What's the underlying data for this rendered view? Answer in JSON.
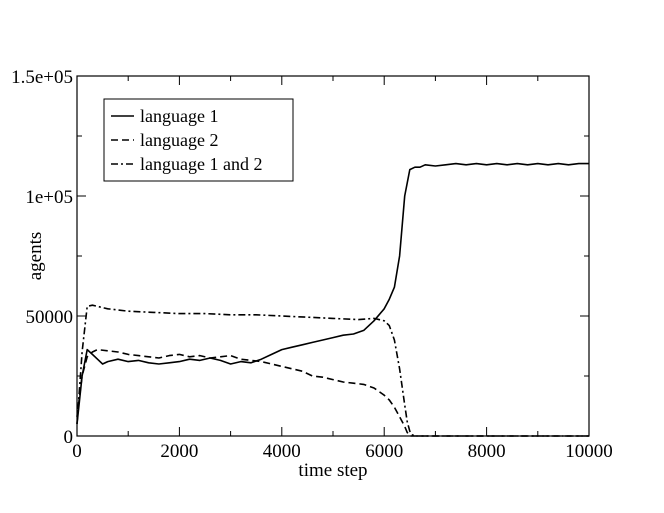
{
  "chart_data": {
    "type": "line",
    "title": "",
    "xlabel": "time step",
    "ylabel": "agents",
    "xlim": [
      0,
      10000
    ],
    "ylim": [
      0,
      150000
    ],
    "grid": false,
    "legend_position": "top-left",
    "x_ticks": [
      0,
      2000,
      4000,
      6000,
      8000,
      10000
    ],
    "x_tick_labels": [
      "0",
      "2000",
      "4000",
      "6000",
      "8000",
      "10000"
    ],
    "y_ticks": [
      0,
      50000,
      100000,
      150000
    ],
    "y_tick_labels": [
      "0",
      "50000",
      "1e+05",
      "1.5e+05"
    ],
    "series": [
      {
        "name": "language 1",
        "dash": "solid",
        "x": [
          0,
          100,
          200,
          300,
          400,
          500,
          600,
          800,
          1000,
          1200,
          1400,
          1600,
          1800,
          2000,
          2200,
          2400,
          2600,
          2800,
          3000,
          3200,
          3400,
          3600,
          3800,
          4000,
          4200,
          4400,
          4600,
          4800,
          5000,
          5200,
          5400,
          5600,
          5800,
          6000,
          6100,
          6200,
          6300,
          6400,
          6500,
          6600,
          6700,
          6800,
          7000,
          7200,
          7400,
          7600,
          7800,
          8000,
          8200,
          8400,
          8600,
          8800,
          9000,
          9200,
          9400,
          9600,
          9800,
          10000
        ],
        "y": [
          5000,
          25000,
          36000,
          34000,
          32000,
          30000,
          31000,
          32000,
          31000,
          31500,
          30500,
          30000,
          30500,
          31000,
          32000,
          31500,
          32500,
          31500,
          30000,
          31000,
          30500,
          32000,
          34000,
          36000,
          37000,
          38000,
          39000,
          40000,
          41000,
          42000,
          42500,
          44000,
          48000,
          53000,
          57000,
          62000,
          75000,
          100000,
          111000,
          112000,
          112000,
          113000,
          112500,
          113000,
          113500,
          113000,
          113500,
          113000,
          113500,
          113000,
          113500,
          113000,
          113500,
          113000,
          113500,
          113000,
          113500,
          113500
        ]
      },
      {
        "name": "language 2",
        "dash": "dashed",
        "x": [
          0,
          100,
          200,
          300,
          400,
          600,
          800,
          1000,
          1200,
          1400,
          1600,
          1800,
          2000,
          2200,
          2400,
          2600,
          2800,
          3000,
          3200,
          3400,
          3600,
          3800,
          4000,
          4200,
          4400,
          4600,
          4800,
          5000,
          5200,
          5400,
          5600,
          5800,
          6000,
          6100,
          6200,
          6300,
          6400,
          6450,
          6500,
          6600,
          7000,
          8000,
          9000,
          10000
        ],
        "y": [
          8000,
          25000,
          33000,
          35000,
          36000,
          35500,
          35000,
          34000,
          33500,
          33000,
          32500,
          33500,
          34000,
          33000,
          33500,
          32500,
          33000,
          33500,
          32000,
          31500,
          31000,
          30000,
          29000,
          28000,
          27000,
          25000,
          24500,
          23500,
          22500,
          22000,
          21500,
          20000,
          17000,
          15000,
          12000,
          8000,
          4000,
          1500,
          0,
          0,
          0,
          0,
          0,
          0
        ]
      },
      {
        "name": "language 1 and 2",
        "dash": "dashdot",
        "x": [
          0,
          100,
          200,
          300,
          400,
          600,
          800,
          1000,
          1500,
          2000,
          2500,
          3000,
          3500,
          4000,
          4500,
          5000,
          5500,
          5800,
          6000,
          6100,
          6200,
          6300,
          6400,
          6450,
          6500,
          6550,
          6600,
          7000,
          8000,
          9000,
          10000
        ],
        "y": [
          5000,
          35000,
          54000,
          54500,
          54000,
          53000,
          52500,
          52000,
          51500,
          51000,
          51000,
          50500,
          50500,
          50000,
          49500,
          49000,
          48500,
          49000,
          48000,
          46000,
          40000,
          28000,
          13000,
          6000,
          2000,
          500,
          0,
          0,
          0,
          0,
          0
        ]
      }
    ]
  }
}
